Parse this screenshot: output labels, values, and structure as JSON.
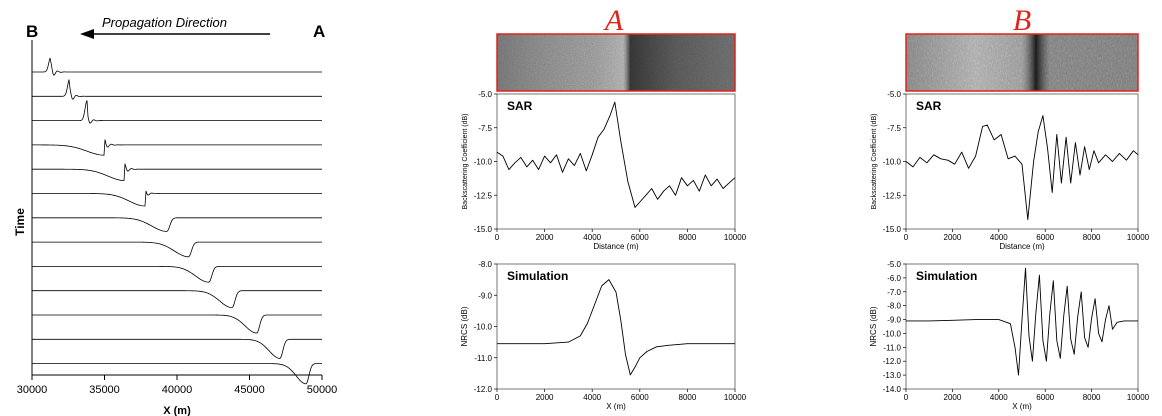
{
  "left_panel": {
    "label_b": "B",
    "label_a": "A",
    "arrow_text": "Propagation Direction",
    "ylabel": "Time",
    "xlabel": "X (m)"
  },
  "sar_images": [
    {
      "label": "A"
    },
    {
      "label": "B"
    }
  ],
  "colors": {
    "accent_red": "#e0241b",
    "line": "#000000",
    "image_frame": "#e0241b"
  },
  "chart_data": [
    {
      "type": "line",
      "title": "",
      "xlabel": "X (m)",
      "ylabel": "Time",
      "xlim": [
        30000,
        50000
      ],
      "xticks": [
        30000,
        35000,
        40000,
        45000,
        50000
      ],
      "grid": false,
      "series": [
        {
          "peak_x": 31300
        },
        {
          "peak_x": 32600
        },
        {
          "peak_x": 33800
        },
        {
          "peak_x": 35000
        },
        {
          "peak_x": 36400
        },
        {
          "peak_x": 37800
        },
        {
          "peak_x": 39300
        },
        {
          "peak_x": 40800
        },
        {
          "peak_x": 42200
        },
        {
          "peak_x": 43800
        },
        {
          "peak_x": 45500
        },
        {
          "peak_x": 47100
        },
        {
          "peak_x": 48900
        }
      ]
    },
    {
      "type": "line",
      "title": "SAR",
      "xlabel": "Distance (m)",
      "ylabel": "Backscattering Coefficient (dB)",
      "xlim": [
        0,
        10000
      ],
      "ylim": [
        -15.0,
        -5.0
      ],
      "xticks": [
        0,
        2000,
        4000,
        6000,
        8000,
        10000
      ],
      "yticks": [
        "-5.0",
        "-7.5",
        "-10.0",
        "-12.5",
        "-15.0"
      ],
      "series": [
        {
          "x": [
            0,
            250,
            500,
            750,
            1000,
            1250,
            1500,
            1750,
            2000,
            2250,
            2500,
            2750,
            3000,
            3250,
            3500,
            3750,
            4000,
            4250,
            4500,
            4750,
            4950,
            5200,
            5500,
            5800,
            6000,
            6250,
            6500,
            6750,
            7000,
            7250,
            7500,
            7750,
            8000,
            8250,
            8500,
            8750,
            9000,
            9250,
            9500,
            9750,
            10000
          ],
          "y": [
            -9.3,
            -9.6,
            -10.6,
            -10.1,
            -9.7,
            -10.4,
            -9.9,
            -10.6,
            -9.6,
            -10.1,
            -9.5,
            -10.8,
            -9.8,
            -10.3,
            -9.4,
            -10.7,
            -9.5,
            -8.2,
            -7.6,
            -6.6,
            -5.6,
            -8.5,
            -11.5,
            -13.4,
            -13.0,
            -12.5,
            -12.0,
            -12.8,
            -12.2,
            -11.8,
            -12.5,
            -11.2,
            -11.8,
            -11.4,
            -12.2,
            -11.0,
            -11.8,
            -11.3,
            -12.0,
            -11.6,
            -11.2
          ]
        }
      ]
    },
    {
      "type": "line",
      "title": "Simulation",
      "xlabel": "X (m)",
      "ylabel": "NRCS (dB)",
      "xlim": [
        0,
        10000
      ],
      "ylim": [
        -12.0,
        -8.0
      ],
      "xticks": [
        0,
        2000,
        4000,
        6000,
        8000,
        10000
      ],
      "yticks": [
        "-8.0",
        "-9.0",
        "-10.0",
        "-11.0",
        "-12.0"
      ],
      "series": [
        {
          "x": [
            0,
            1000,
            2000,
            3000,
            3500,
            3800,
            4100,
            4400,
            4700,
            5000,
            5200,
            5400,
            5600,
            5800,
            6000,
            6300,
            6700,
            7200,
            8000,
            9000,
            10000
          ],
          "y": [
            -10.55,
            -10.55,
            -10.55,
            -10.5,
            -10.3,
            -9.9,
            -9.3,
            -8.7,
            -8.5,
            -8.9,
            -9.8,
            -10.9,
            -11.55,
            -11.3,
            -11.0,
            -10.8,
            -10.65,
            -10.6,
            -10.55,
            -10.55,
            -10.55
          ]
        }
      ]
    },
    {
      "type": "line",
      "title": "SAR",
      "xlabel": "Distance (m)",
      "ylabel": "Backscattering Coefficient (dB)",
      "xlim": [
        0,
        10000
      ],
      "ylim": [
        -15.0,
        -5.0
      ],
      "xticks": [
        0,
        2000,
        4000,
        6000,
        8000,
        10000
      ],
      "yticks": [
        "-5.0",
        "-7.5",
        "-10.0",
        "-12.5",
        "-15.0"
      ],
      "series": [
        {
          "x": [
            0,
            300,
            600,
            900,
            1200,
            1500,
            1800,
            2100,
            2400,
            2700,
            3000,
            3300,
            3500,
            3800,
            4100,
            4400,
            4700,
            5000,
            5250,
            5500,
            5700,
            5900,
            6100,
            6300,
            6500,
            6700,
            6900,
            7100,
            7300,
            7500,
            7700,
            7900,
            8100,
            8300,
            8600,
            8900,
            9200,
            9500,
            9800,
            10000
          ],
          "y": [
            -10.0,
            -10.4,
            -9.7,
            -10.1,
            -9.5,
            -9.8,
            -9.9,
            -10.2,
            -9.3,
            -10.5,
            -9.6,
            -7.4,
            -7.3,
            -8.4,
            -8.0,
            -9.8,
            -9.6,
            -10.2,
            -14.3,
            -10.0,
            -7.8,
            -6.6,
            -9.0,
            -12.3,
            -8.0,
            -11.6,
            -8.2,
            -11.6,
            -8.6,
            -11.0,
            -8.9,
            -10.6,
            -9.2,
            -10.1,
            -9.5,
            -10.0,
            -9.4,
            -9.9,
            -9.2,
            -9.5
          ]
        }
      ]
    },
    {
      "type": "line",
      "title": "Simulation",
      "xlabel": "X (m)",
      "ylabel": "NRCS (dB)",
      "xlim": [
        0,
        10000
      ],
      "ylim": [
        -14.0,
        -5.0
      ],
      "xticks": [
        0,
        2000,
        4000,
        6000,
        8000,
        10000
      ],
      "yticks": [
        "-5.0",
        "-6.0",
        "-7.0",
        "-8.0",
        "-9.0",
        "-10.0",
        "-11.0",
        "-12.0",
        "-13.0",
        "-14.0"
      ],
      "series": [
        {
          "x": [
            0,
            1000,
            2000,
            3000,
            4000,
            4500,
            4700,
            4850,
            5000,
            5150,
            5300,
            5450,
            5600,
            5750,
            5900,
            6050,
            6200,
            6350,
            6500,
            6650,
            6800,
            6950,
            7100,
            7250,
            7400,
            7550,
            7700,
            7850,
            8000,
            8150,
            8300,
            8450,
            8600,
            8750,
            8900,
            9100,
            9400,
            10000
          ],
          "y": [
            -9.1,
            -9.1,
            -9.05,
            -9.0,
            -9.0,
            -9.3,
            -11.0,
            -13.0,
            -9.0,
            -5.3,
            -10.2,
            -12.0,
            -8.5,
            -5.8,
            -10.5,
            -12.0,
            -8.6,
            -6.2,
            -10.5,
            -11.8,
            -8.7,
            -6.6,
            -10.4,
            -11.5,
            -8.8,
            -7.0,
            -10.3,
            -11.0,
            -8.9,
            -7.5,
            -10.0,
            -10.6,
            -9.0,
            -8.0,
            -9.7,
            -9.2,
            -9.1,
            -9.1
          ]
        }
      ]
    }
  ]
}
